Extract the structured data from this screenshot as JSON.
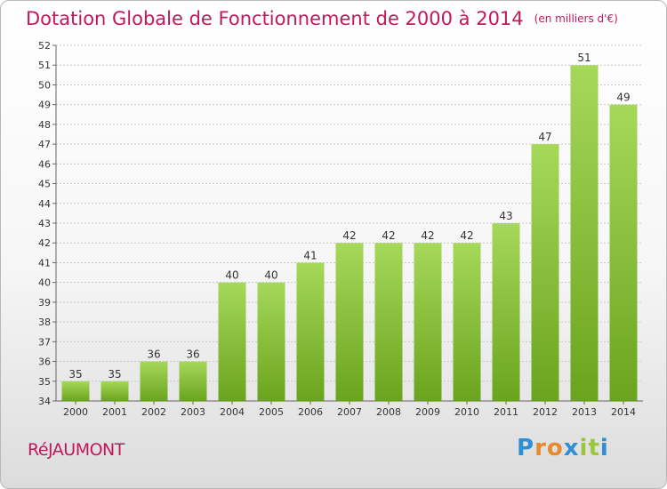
{
  "header": {
    "title": "Dotation Globale de Fonctionnement de 2000 à 2014",
    "unit": "(en milliers d'€)"
  },
  "footer": {
    "commune": "RéJAUMONT",
    "logo_letters": [
      "P",
      "r",
      "o",
      "x",
      "i",
      "t",
      "i"
    ],
    "logo_colors": [
      "#2f8fd5",
      "#e8892c",
      "#e8892c",
      "#2f8fd5",
      "#9bc53d",
      "#9bc53d",
      "#2f8fd5"
    ]
  },
  "chart_data": {
    "type": "bar",
    "title": "Dotation Globale de Fonctionnement de 2000 à 2014",
    "categories": [
      "2000",
      "2001",
      "2002",
      "2003",
      "2004",
      "2005",
      "2006",
      "2007",
      "2008",
      "2009",
      "2010",
      "2011",
      "2012",
      "2013",
      "2014"
    ],
    "values": [
      35,
      35,
      36,
      36,
      40,
      40,
      41,
      42,
      42,
      42,
      42,
      43,
      47,
      51,
      49
    ],
    "ylim": [
      34,
      52
    ],
    "yticks": [
      34,
      35,
      36,
      37,
      38,
      39,
      40,
      41,
      42,
      43,
      44,
      45,
      46,
      47,
      48,
      49,
      50,
      51,
      52
    ],
    "grid": true,
    "bar_color_light": "#a6d85a",
    "bar_color_dark": "#6aa41e",
    "grid_color": "#c8c8c8"
  }
}
